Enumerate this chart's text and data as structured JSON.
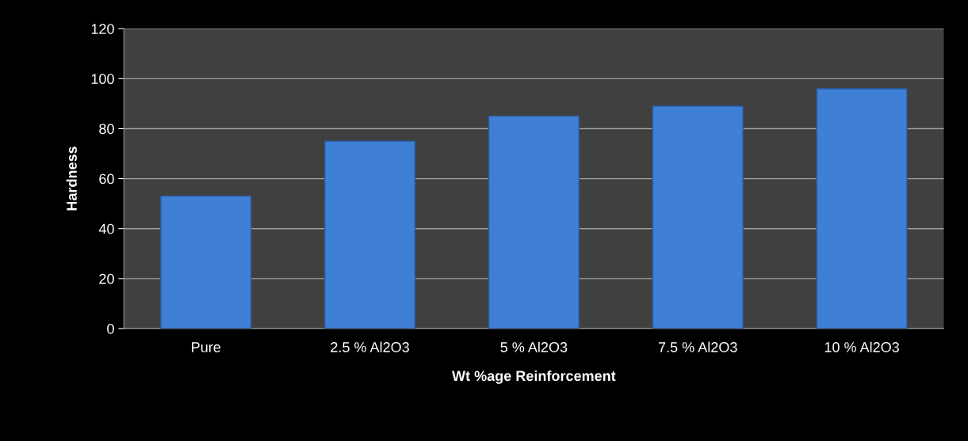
{
  "chart_data": {
    "type": "bar",
    "xlabel": "Wt %age Reinforcement",
    "ylabel": "Hardness",
    "categories": [
      "Pure",
      "2.5 % Al2O3",
      "5 % Al2O3",
      "7.5 % Al2O3",
      "10 % Al2O3"
    ],
    "values": [
      53,
      75,
      85,
      89,
      96
    ],
    "color": "#3f7fd6",
    "ylim": [
      0,
      120
    ],
    "yticks": [
      0,
      20,
      40,
      60,
      80,
      100,
      120
    ],
    "grid": "y",
    "legend": false
  }
}
